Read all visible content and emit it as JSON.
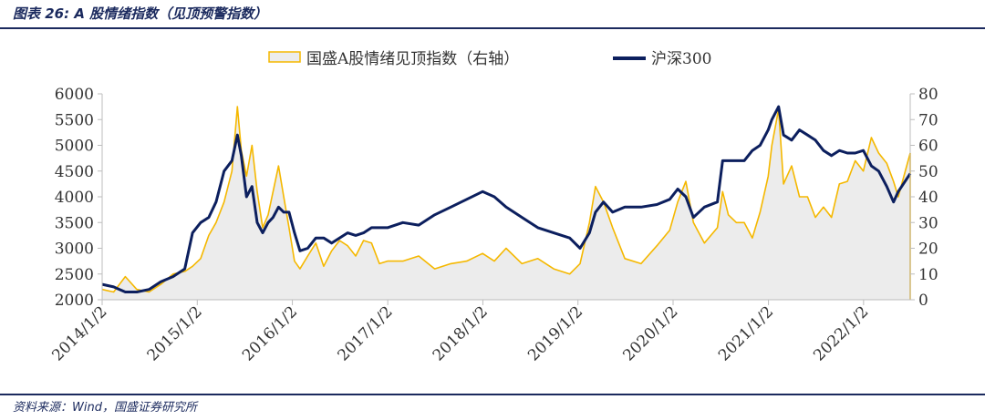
{
  "caption": "图表 26:  A 股情绪指数（见顶预警指数）",
  "source": "资料来源：Wind，国盛证券研究所",
  "colors": {
    "index_line": "#f5b800",
    "index_fill": "#ececec",
    "csi300": "#0c1f5e",
    "rule": "#1b2a5e",
    "axis": "#bdbdbd",
    "text": "#333333"
  },
  "chart_data": {
    "type": "line",
    "legend_position": "top-center",
    "grid": false,
    "x_tick_labels": [
      "2014/1/2",
      "2015/1/2",
      "2016/1/2",
      "2017/1/2",
      "2018/1/2",
      "2019/1/2",
      "2020/1/2",
      "2021/1/2",
      "2022/1/2"
    ],
    "xlim": [
      "2014/1/2",
      "2022/6/30"
    ],
    "ylim_left": [
      2000,
      6000
    ],
    "yticks_left": [
      2000,
      2500,
      3000,
      3500,
      4000,
      4500,
      5000,
      5500,
      6000
    ],
    "ylim_right": [
      0,
      80
    ],
    "yticks_right": [
      0,
      10,
      20,
      30,
      40,
      50,
      60,
      70,
      80
    ],
    "series": [
      {
        "name": "国盛A股情绪见顶指数（右轴）",
        "axis": "right",
        "style": "area",
        "x": [
          "2014/1/2",
          "2014/2/15",
          "2014/4/1",
          "2014/5/15",
          "2014/7/1",
          "2014/8/15",
          "2014/10/1",
          "2014/11/15",
          "2014/12/15",
          "2015/1/15",
          "2015/2/15",
          "2015/3/15",
          "2015/4/15",
          "2015/5/15",
          "2015/6/5",
          "2015/6/20",
          "2015/7/10",
          "2015/7/31",
          "2015/8/20",
          "2015/9/10",
          "2015/10/1",
          "2015/10/20",
          "2015/11/10",
          "2015/11/30",
          "2015/12/20",
          "2016/1/10",
          "2016/1/31",
          "2016/3/1",
          "2016/4/1",
          "2016/5/1",
          "2016/6/1",
          "2016/7/1",
          "2016/8/1",
          "2016/9/1",
          "2016/10/1",
          "2016/11/1",
          "2016/12/1",
          "2017/1/1",
          "2017/3/1",
          "2017/5/1",
          "2017/7/1",
          "2017/9/1",
          "2017/11/1",
          "2018/1/1",
          "2018/2/15",
          "2018/4/1",
          "2018/6/1",
          "2018/8/1",
          "2018/10/1",
          "2018/12/1",
          "2019/1/10",
          "2019/2/15",
          "2019/3/10",
          "2019/4/10",
          "2019/5/15",
          "2019/7/1",
          "2019/9/1",
          "2019/11/1",
          "2019/12/20",
          "2020/1/20",
          "2020/2/20",
          "2020/3/20",
          "2020/5/1",
          "2020/6/20",
          "2020/7/10",
          "2020/8/1",
          "2020/9/1",
          "2020/10/1",
          "2020/11/1",
          "2020/12/1",
          "2021/1/1",
          "2021/1/15",
          "2021/2/10",
          "2021/3/1",
          "2021/4/1",
          "2021/5/1",
          "2021/6/1",
          "2021/7/1",
          "2021/8/1",
          "2021/9/1",
          "2021/10/1",
          "2021/11/1",
          "2021/12/1",
          "2022/1/1",
          "2022/2/1",
          "2022/3/1",
          "2022/4/1",
          "2022/4/27",
          "2022/5/15",
          "2022/6/30"
        ],
        "values": [
          4,
          3,
          9,
          4,
          3,
          6,
          10,
          11,
          13,
          16,
          25,
          30,
          38,
          50,
          75,
          58,
          48,
          60,
          42,
          28,
          33,
          42,
          52,
          40,
          28,
          15,
          12,
          17,
          22,
          13,
          19,
          23,
          21,
          17,
          23,
          22,
          14,
          15,
          15,
          17,
          12,
          14,
          15,
          18,
          15,
          20,
          14,
          16,
          12,
          10,
          14,
          30,
          44,
          38,
          28,
          16,
          14,
          21,
          27,
          38,
          46,
          30,
          22,
          28,
          42,
          33,
          30,
          30,
          24,
          34,
          48,
          60,
          74,
          45,
          52,
          40,
          40,
          32,
          36,
          32,
          45,
          46,
          54,
          50,
          63,
          57,
          53,
          46,
          40,
          57
        ]
      },
      {
        "name": "沪深300",
        "axis": "left",
        "style": "line",
        "x": [
          "2014/1/2",
          "2014/2/15",
          "2014/4/1",
          "2014/5/15",
          "2014/7/1",
          "2014/8/15",
          "2014/10/1",
          "2014/11/15",
          "2014/12/15",
          "2015/1/15",
          "2015/2/15",
          "2015/3/15",
          "2015/4/15",
          "2015/5/15",
          "2015/6/5",
          "2015/6/20",
          "2015/7/10",
          "2015/7/31",
          "2015/8/20",
          "2015/9/10",
          "2015/10/1",
          "2015/10/20",
          "2015/11/10",
          "2015/11/30",
          "2015/12/20",
          "2016/1/10",
          "2016/1/31",
          "2016/3/1",
          "2016/4/1",
          "2016/5/1",
          "2016/6/1",
          "2016/7/1",
          "2016/8/1",
          "2016/9/1",
          "2016/10/1",
          "2016/11/1",
          "2016/12/1",
          "2017/1/1",
          "2017/3/1",
          "2017/5/1",
          "2017/7/1",
          "2017/9/1",
          "2017/11/1",
          "2018/1/1",
          "2018/2/15",
          "2018/4/1",
          "2018/6/1",
          "2018/8/1",
          "2018/10/1",
          "2018/12/1",
          "2019/1/10",
          "2019/2/15",
          "2019/3/10",
          "2019/4/10",
          "2019/5/15",
          "2019/7/1",
          "2019/9/1",
          "2019/11/1",
          "2019/12/20",
          "2020/1/20",
          "2020/2/20",
          "2020/3/20",
          "2020/5/1",
          "2020/6/20",
          "2020/7/10",
          "2020/8/1",
          "2020/9/1",
          "2020/10/1",
          "2020/11/1",
          "2020/12/1",
          "2021/1/1",
          "2021/1/15",
          "2021/2/10",
          "2021/3/1",
          "2021/4/1",
          "2021/5/1",
          "2021/6/1",
          "2021/7/1",
          "2021/8/1",
          "2021/9/1",
          "2021/10/1",
          "2021/11/1",
          "2021/12/1",
          "2022/1/1",
          "2022/2/1",
          "2022/3/1",
          "2022/4/1",
          "2022/4/27",
          "2022/5/15",
          "2022/6/30"
        ],
        "values": [
          2300,
          2250,
          2150,
          2150,
          2200,
          2350,
          2450,
          2600,
          3300,
          3500,
          3600,
          3900,
          4500,
          4700,
          5200,
          4800,
          4000,
          4200,
          3500,
          3300,
          3500,
          3600,
          3800,
          3700,
          3700,
          3300,
          2950,
          3000,
          3200,
          3200,
          3100,
          3200,
          3300,
          3250,
          3300,
          3400,
          3400,
          3400,
          3500,
          3450,
          3650,
          3800,
          3950,
          4100,
          4000,
          3800,
          3600,
          3400,
          3300,
          3200,
          3000,
          3300,
          3700,
          3900,
          3700,
          3800,
          3800,
          3850,
          3950,
          4150,
          4000,
          3600,
          3800,
          3900,
          4700,
          4700,
          4700,
          4700,
          4900,
          5000,
          5300,
          5500,
          5750,
          5200,
          5100,
          5300,
          5200,
          5100,
          4900,
          4800,
          4900,
          4850,
          4850,
          4900,
          4600,
          4500,
          4200,
          3900,
          4100,
          4450
        ]
      }
    ]
  }
}
